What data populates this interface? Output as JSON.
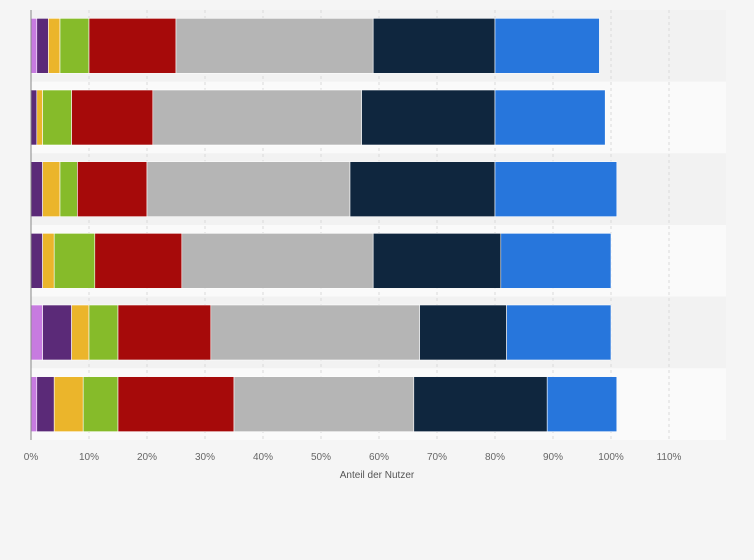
{
  "chart_data": {
    "type": "bar",
    "orientation": "horizontal",
    "stacked": true,
    "title": "",
    "xlabel": "Anteil der Nutzer",
    "ylabel": "",
    "xlim": [
      0,
      120
    ],
    "x_ticks": [
      "0%",
      "10%",
      "20%",
      "30%",
      "40%",
      "50%",
      "60%",
      "70%",
      "80%",
      "90%",
      "100%",
      "110%"
    ],
    "categories": [
      "",
      "",
      "",
      "",
      "",
      ""
    ],
    "grid": true,
    "legend": "none",
    "series": [
      {
        "color": "#c77be0",
        "values": [
          1,
          0,
          0,
          0,
          2,
          1
        ]
      },
      {
        "color": "#5b2a78",
        "values": [
          2,
          1,
          2,
          2,
          5,
          3
        ]
      },
      {
        "color": "#ebb52b",
        "values": [
          2,
          1,
          3,
          2,
          3,
          5
        ]
      },
      {
        "color": "#86bb2a",
        "values": [
          5,
          5,
          3,
          7,
          5,
          6
        ]
      },
      {
        "color": "#a60a0a",
        "values": [
          15,
          14,
          12,
          15,
          16,
          20
        ]
      },
      {
        "color": "#b5b5b5",
        "values": [
          34,
          36,
          35,
          33,
          36,
          31
        ]
      },
      {
        "color": "#0f263e",
        "values": [
          21,
          23,
          25,
          22,
          15,
          23
        ]
      },
      {
        "color": "#2776dc",
        "values": [
          18,
          19,
          21,
          19,
          18,
          12
        ]
      }
    ]
  }
}
